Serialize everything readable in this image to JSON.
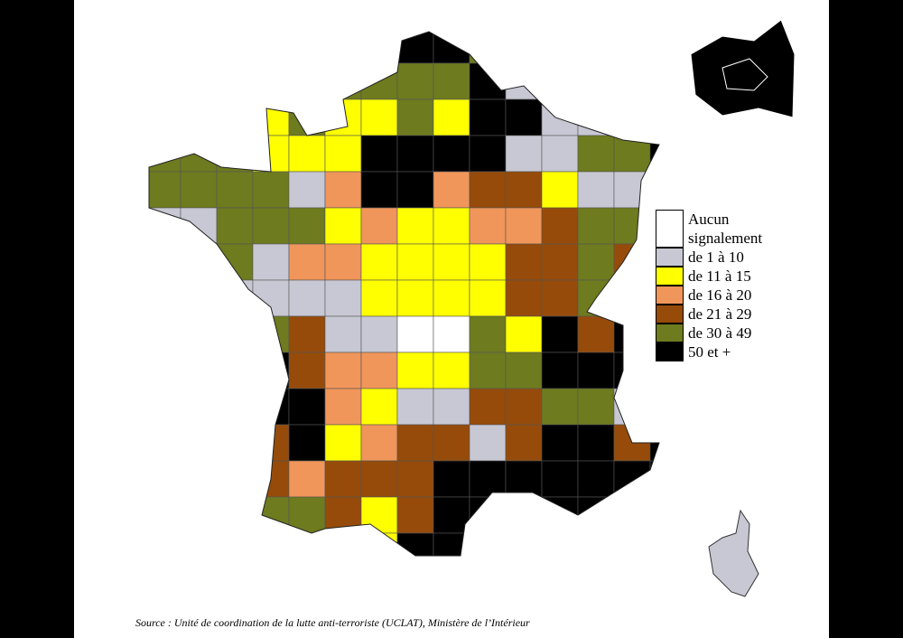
{
  "legend": {
    "items": [
      {
        "label": "Aucun signalement",
        "color": "#ffffff"
      },
      {
        "label": "de 1 à 10",
        "color": "#c8c8d4"
      },
      {
        "label": "de 11 à 15",
        "color": "#ffff00"
      },
      {
        "label": "de 16 à 20",
        "color": "#f0965a"
      },
      {
        "label": "de 21 à 29",
        "color": "#964b0a"
      },
      {
        "label": "de 30 à 49",
        "color": "#6e7b1e"
      },
      {
        "label": "50 et +",
        "color": "#000000"
      }
    ]
  },
  "source": "Source : Unité de coordination de la lutte anti-terroriste (UCLAT), Ministère de l’Intérieur"
}
